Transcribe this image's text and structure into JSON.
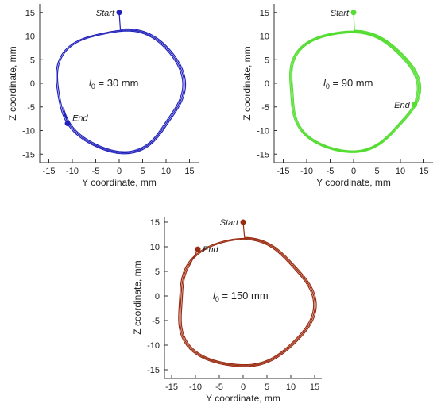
{
  "chart_data": [
    {
      "type": "line",
      "panel": "l0-30",
      "label_symbol": "l",
      "label_subscript": "0",
      "label_value": " = 30 mm",
      "xlabel": "Y coordinate, mm",
      "ylabel": "Z coordinate, mm",
      "xlim": [
        -17,
        17
      ],
      "ylim": [
        -16,
        16
      ],
      "xticks": [
        -15,
        -10,
        -5,
        0,
        5,
        10,
        15
      ],
      "yticks": [
        -15,
        -10,
        -5,
        0,
        5,
        10,
        15
      ],
      "color": "#2222bb",
      "start": {
        "label": "Start",
        "y": 0,
        "z": 15
      },
      "end": {
        "label": "End",
        "y": -11,
        "z": -8.5
      },
      "trajectory": {
        "center_y": 0,
        "center_z": -1.3,
        "radius_y": 13.8,
        "radius_z": 13.2,
        "turns": 2.7,
        "jitter": 0.6
      }
    },
    {
      "type": "line",
      "panel": "l0-90",
      "label_symbol": "l",
      "label_subscript": "0",
      "label_value": " = 90 mm",
      "xlabel": "Y coordinate, mm",
      "ylabel": "Z coordinate, mm",
      "xlim": [
        -17,
        17
      ],
      "ylim": [
        -16,
        16
      ],
      "xticks": [
        -15,
        -10,
        -5,
        0,
        5,
        10,
        15
      ],
      "yticks": [
        -15,
        -10,
        -5,
        0,
        5,
        10,
        15
      ],
      "color": "#55dd33",
      "start": {
        "label": "Start",
        "y": 0,
        "z": 15
      },
      "end": {
        "label": "End",
        "y": 13,
        "z": -4.5
      },
      "trajectory": {
        "center_y": -0.5,
        "center_z": -1.5,
        "radius_y": 14,
        "radius_z": 13,
        "turns": 3.25,
        "jitter": 0.6
      }
    },
    {
      "type": "line",
      "panel": "l0-150",
      "label_symbol": "l",
      "label_subscript": "0",
      "label_value": " = 150 mm",
      "xlabel": "Y coordinate, mm",
      "ylabel": "Z coordinate, mm",
      "xlim": [
        -17,
        17
      ],
      "ylim": [
        -16,
        16
      ],
      "xticks": [
        -15,
        -10,
        -5,
        0,
        5,
        10,
        15
      ],
      "yticks": [
        -15,
        -10,
        -5,
        0,
        5,
        10,
        15
      ],
      "color": "#9a2a10",
      "start": {
        "label": "Start",
        "y": 0,
        "z": 15
      },
      "end": {
        "label": "End",
        "y": -9.5,
        "z": 9.5
      },
      "trajectory": {
        "center_y": 0,
        "center_z": -1.5,
        "radius_y": 14.5,
        "radius_z": 13.2,
        "turns": 2.85,
        "jitter": 0.6
      }
    }
  ]
}
